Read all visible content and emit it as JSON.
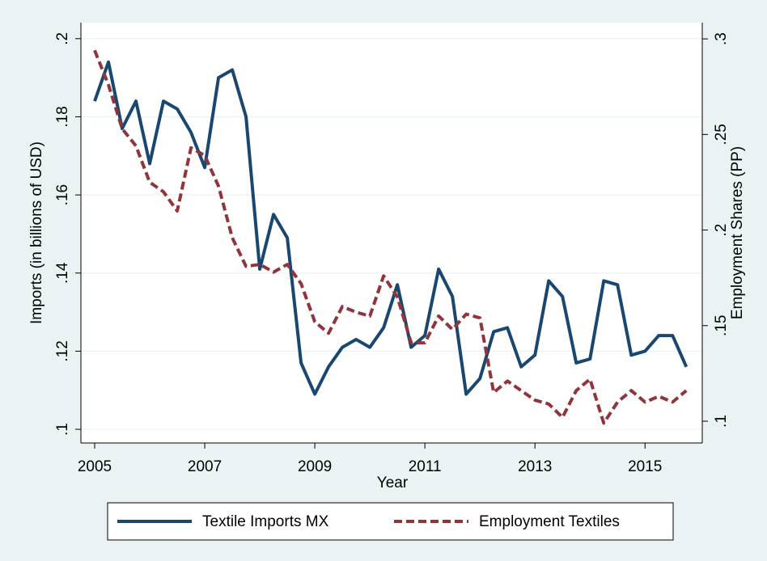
{
  "chart_data": {
    "type": "line",
    "x_label": "Year",
    "y_label": "Imports (in billions of USD)",
    "y2_label": "Employment Shares (PP)",
    "x": [
      2005,
      2005.25,
      2005.5,
      2005.75,
      2006,
      2006.25,
      2006.5,
      2006.75,
      2007,
      2007.25,
      2007.5,
      2007.75,
      2008,
      2008.25,
      2008.5,
      2008.75,
      2009,
      2009.25,
      2009.5,
      2009.75,
      2010,
      2010.25,
      2010.5,
      2010.75,
      2011,
      2011.25,
      2011.5,
      2011.75,
      2012,
      2012.25,
      2012.5,
      2012.75,
      2013,
      2013.25,
      2013.5,
      2013.75,
      2014,
      2014.25,
      2014.5,
      2014.75,
      2015,
      2015.25,
      2015.5,
      2015.75
    ],
    "xlim": [
      2004.75,
      2016.04
    ],
    "xticks": [
      2005,
      2007,
      2009,
      2011,
      2013,
      2015
    ],
    "ylim": [
      0.0965,
      0.2041
    ],
    "yticks": [
      {
        "value": 0.1,
        "label": ".1"
      },
      {
        "value": 0.12,
        "label": ".12"
      },
      {
        "value": 0.14,
        "label": ".14"
      },
      {
        "value": 0.16,
        "label": ".16"
      },
      {
        "value": 0.18,
        "label": ".18"
      },
      {
        "value": 0.2,
        "label": ".2"
      }
    ],
    "y2lim": [
      0.0886,
      0.3085
    ],
    "y2ticks": [
      {
        "value": 0.1,
        "label": ".1"
      },
      {
        "value": 0.15,
        "label": ".15"
      },
      {
        "value": 0.2,
        "label": ".2"
      },
      {
        "value": 0.25,
        "label": ".25"
      },
      {
        "value": 0.3,
        "label": ".3"
      }
    ],
    "grid": true,
    "legend": "bottom",
    "series": [
      {
        "name": "Textile Imports MX",
        "color": "#1a476f",
        "dash": false,
        "values": [
          0.184,
          0.194,
          0.177,
          0.184,
          0.168,
          0.184,
          0.182,
          0.176,
          0.167,
          0.19,
          0.192,
          0.18,
          0.141,
          0.155,
          0.149,
          0.117,
          0.109,
          0.116,
          0.121,
          0.123,
          0.121,
          0.126,
          0.137,
          0.121,
          0.124,
          0.141,
          0.134,
          0.109,
          0.113,
          0.125,
          0.126,
          0.116,
          0.119,
          0.138,
          0.134,
          0.117,
          0.118,
          0.138,
          0.137,
          0.119,
          0.12,
          0.124,
          0.124,
          0.116
        ]
      },
      {
        "name": "Employment Textiles",
        "color": "#90353b",
        "dash": true,
        "axis": "y2",
        "values": [
          0.294,
          0.276,
          0.253,
          0.244,
          0.225,
          0.22,
          0.21,
          0.243,
          0.239,
          0.223,
          0.196,
          0.181,
          0.182,
          0.178,
          0.182,
          0.172,
          0.152,
          0.146,
          0.16,
          0.157,
          0.155,
          0.176,
          0.165,
          0.141,
          0.141,
          0.155,
          0.148,
          0.156,
          0.154,
          0.115,
          0.121,
          0.116,
          0.111,
          0.109,
          0.102,
          0.116,
          0.122,
          0.099,
          0.11,
          0.116,
          0.11,
          0.113,
          0.11,
          0.116
        ]
      }
    ]
  }
}
